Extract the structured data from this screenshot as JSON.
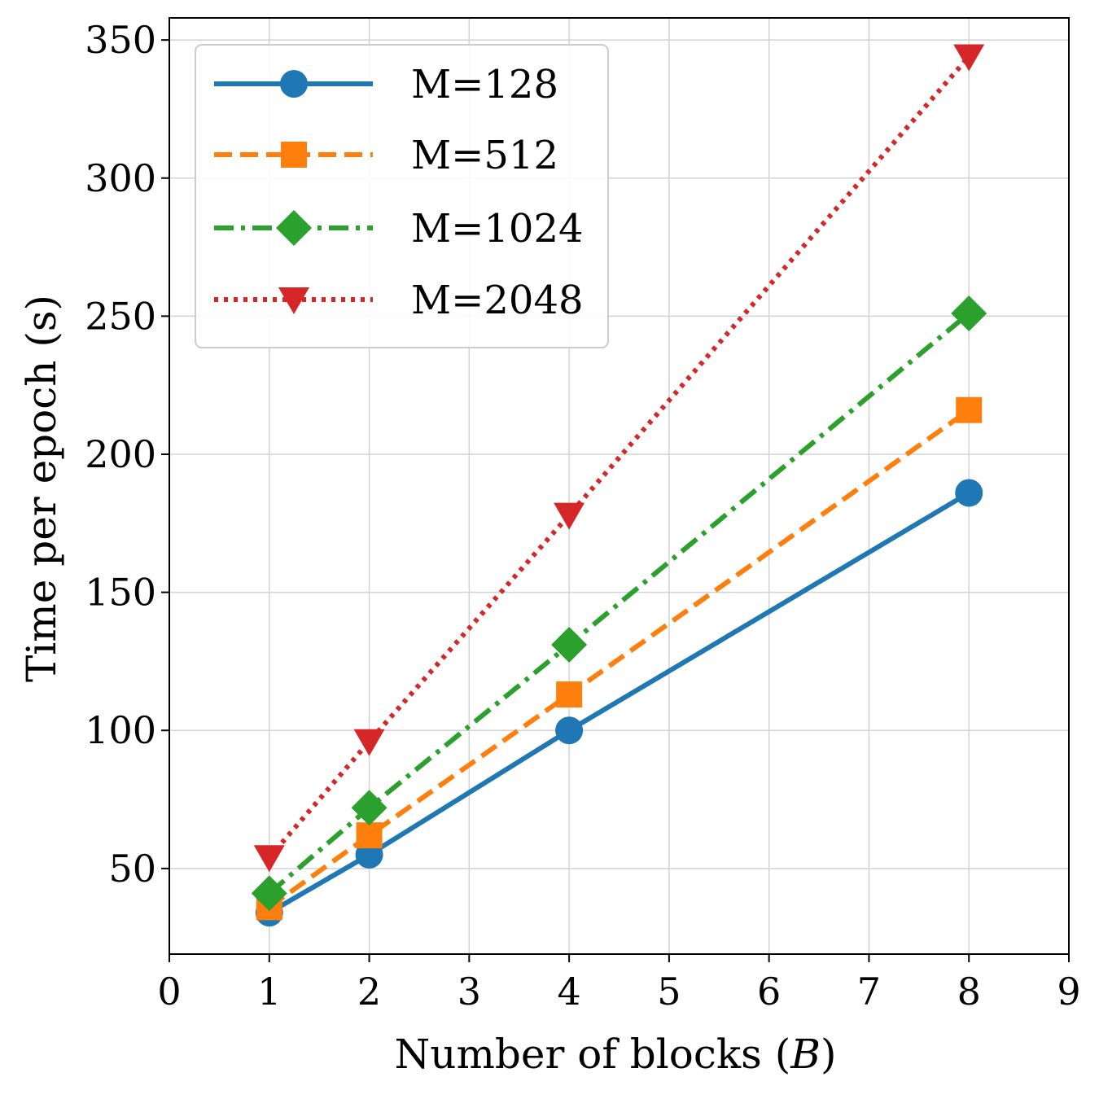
{
  "chart_data": {
    "type": "line",
    "title": "",
    "xlabel": "Number of blocks (",
    "xlabel_var": "B",
    "xlabel_close": ")",
    "ylabel": "Time per epoch (s)",
    "xlim": [
      0,
      9
    ],
    "ylim": [
      19,
      358
    ],
    "xticks": [
      0,
      1,
      2,
      3,
      4,
      5,
      6,
      7,
      8,
      9
    ],
    "yticks": [
      50,
      100,
      150,
      200,
      250,
      300,
      350
    ],
    "grid": true,
    "legend_position": "top-left",
    "x": [
      1,
      2,
      4,
      8
    ],
    "series": [
      {
        "name": "M=128",
        "values": [
          34,
          55,
          100,
          186
        ],
        "color": "#1f77b4",
        "marker": "circle",
        "linestyle": "solid"
      },
      {
        "name": "M=512",
        "values": [
          36,
          62,
          113,
          216
        ],
        "color": "#ff7f0e",
        "marker": "square",
        "linestyle": "dashed"
      },
      {
        "name": "M=1024",
        "values": [
          41,
          72,
          131,
          251
        ],
        "color": "#2ca02c",
        "marker": "diamond",
        "linestyle": "dashdot"
      },
      {
        "name": "M=2048",
        "values": [
          54,
          96,
          178,
          344
        ],
        "color": "#d62728",
        "marker": "triangle-down",
        "linestyle": "dotted"
      }
    ]
  }
}
